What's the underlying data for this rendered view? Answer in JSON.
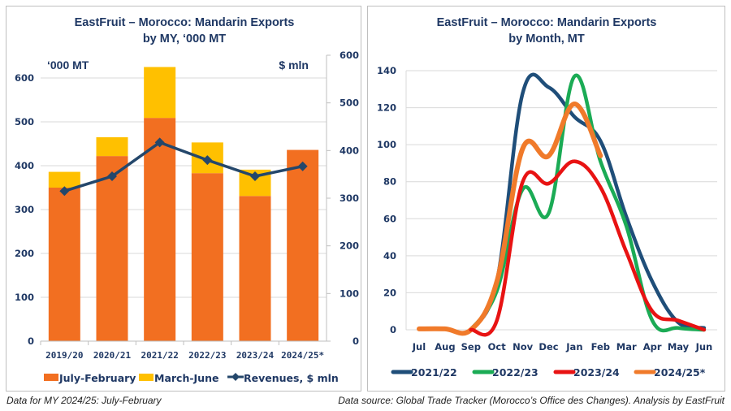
{
  "notes": {
    "left": "Data for MY 2024/25: July-February",
    "right": "Data source: Global Trade Tracker (Morocco’s Office des Changes). Analysis by EastFruit"
  },
  "colors": {
    "title": "#1f3864",
    "july_february": "#f26f21",
    "march_june": "#ffc000",
    "revenues": "#24476b",
    "y2021_22": "#1f4e79",
    "y2022_23": "#1bab55",
    "y2023_24": "#e81313",
    "y2024_25": "#f07a2a",
    "grid": "#d9d9d9"
  },
  "chart_data": [
    {
      "type": "bar",
      "stacked": true,
      "title": "EastFruit – Morocco: Mandarin Exports",
      "subtitle": "by MY, ‘000 MT",
      "ylabel": "‘000 MT",
      "y2label": "$ mln",
      "categories": [
        "2019/20",
        "2020/21",
        "2021/22",
        "2022/23",
        "2023/24",
        "2024/25*"
      ],
      "ylim": [
        0,
        600
      ],
      "yticks": [
        0,
        100,
        200,
        300,
        400,
        500,
        600
      ],
      "y2lim": [
        0,
        600
      ],
      "y2ticks": [
        0,
        100,
        200,
        300,
        400,
        500,
        600
      ],
      "grid": true,
      "legend_position": "bottom",
      "series": [
        {
          "name": "July-February",
          "type": "bar",
          "axis": "left",
          "values": [
            350,
            422,
            509,
            383,
            331,
            436
          ]
        },
        {
          "name": "March-June",
          "type": "bar",
          "axis": "left",
          "values": [
            36,
            43,
            116,
            70,
            60,
            0
          ]
        },
        {
          "name": "Revenues, $ mln",
          "type": "line",
          "axis": "right",
          "marker": "diamond",
          "values": [
            315,
            346,
            417,
            380,
            346,
            367
          ]
        }
      ]
    },
    {
      "type": "line",
      "title": "EastFruit – Morocco: Mandarin Exports",
      "subtitle": "by Month, MT",
      "categories": [
        "Jul",
        "Aug",
        "Sep",
        "Oct",
        "Nov",
        "Dec",
        "Jan",
        "Feb",
        "Mar",
        "Apr",
        "May",
        "Jun"
      ],
      "ylim": [
        0,
        140
      ],
      "yticks": [
        0,
        20,
        40,
        60,
        80,
        100,
        120,
        140
      ],
      "grid": true,
      "smooth": true,
      "legend_position": "bottom",
      "series": [
        {
          "name": "2021/22",
          "values": [
            null,
            null,
            0,
            26,
            128,
            131,
            115,
            102,
            61,
            26,
            4,
            1
          ]
        },
        {
          "name": "2022/23",
          "values": [
            null,
            null,
            0,
            21,
            76,
            63,
            137,
            91,
            56,
            5,
            1,
            0
          ]
        },
        {
          "name": "2023/24",
          "values": [
            null,
            null,
            0,
            5,
            80,
            79,
            91,
            77,
            42,
            10,
            5,
            0
          ]
        },
        {
          "name": "2024/25*",
          "values": [
            0.5,
            0.5,
            0,
            26,
            98,
            94,
            122,
            94,
            null,
            null,
            null,
            null
          ]
        }
      ]
    }
  ]
}
